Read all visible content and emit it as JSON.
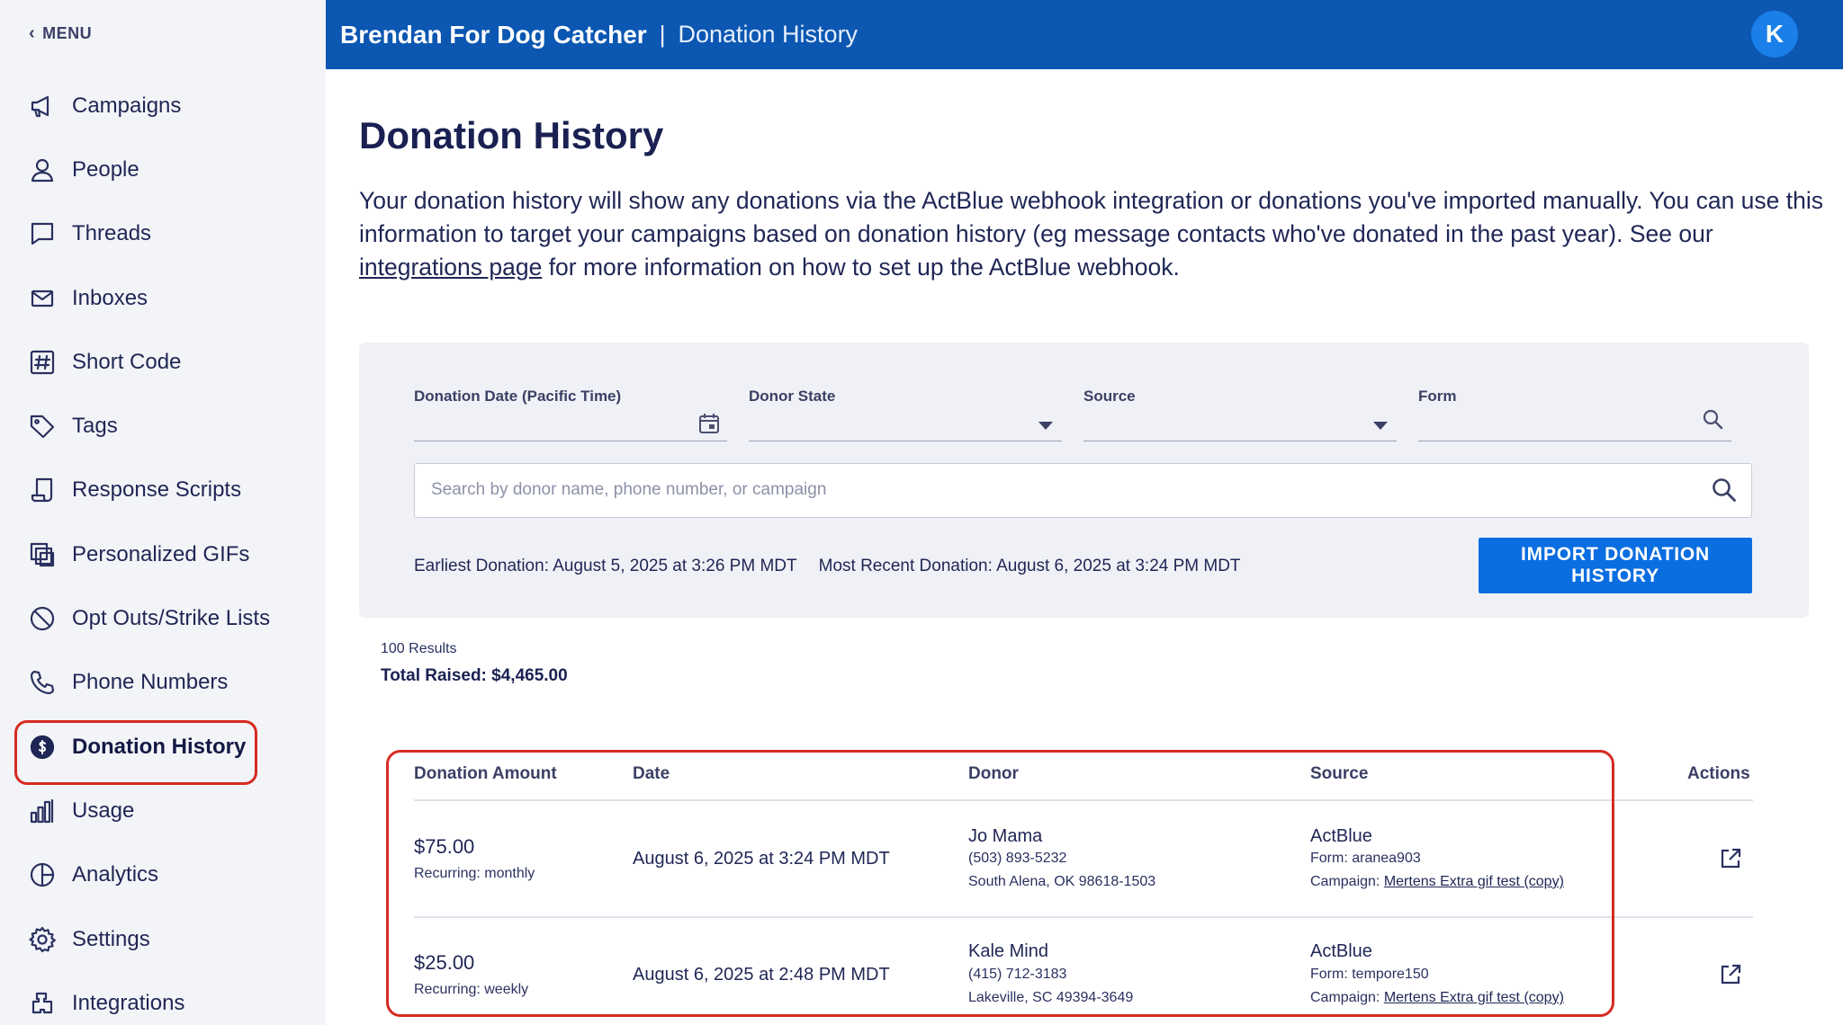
{
  "sidebar": {
    "menu_label": "MENU",
    "items": [
      {
        "label": "Campaigns",
        "icon": "megaphone-icon"
      },
      {
        "label": "People",
        "icon": "person-icon"
      },
      {
        "label": "Threads",
        "icon": "chat-bubble-icon"
      },
      {
        "label": "Inboxes",
        "icon": "envelope-icon"
      },
      {
        "label": "Short Code",
        "icon": "hash-icon"
      },
      {
        "label": "Tags",
        "icon": "tag-icon"
      },
      {
        "label": "Response Scripts",
        "icon": "script-icon"
      },
      {
        "label": "Personalized GIFs",
        "icon": "gif-stack-icon"
      },
      {
        "label": "Opt Outs/Strike Lists",
        "icon": "block-icon"
      },
      {
        "label": "Phone Numbers",
        "icon": "phone-icon"
      },
      {
        "label": "Donation History",
        "icon": "dollar-circle-icon",
        "active": true
      },
      {
        "label": "Usage",
        "icon": "bar-chart-icon"
      },
      {
        "label": "Analytics",
        "icon": "pie-chart-icon"
      },
      {
        "label": "Settings",
        "icon": "gear-icon"
      },
      {
        "label": "Integrations",
        "icon": "puzzle-icon"
      }
    ]
  },
  "header": {
    "brand": "Brendan For Dog Catcher",
    "separator": "|",
    "crumb": "Donation History",
    "avatar_initial": "K"
  },
  "page": {
    "title": "Donation History",
    "intro_before_link": "Your donation history will show any donations via the ActBlue webhook integration or donations you've imported manually. You can use this information to target your campaigns based on donation history (eg message contacts who've donated in the past year). See our ",
    "intro_link": "integrations page",
    "intro_after_link": " for more information on how to set up the ActBlue webhook."
  },
  "filters": {
    "donation_date_label": "Donation Date (Pacific Time)",
    "donor_state_label": "Donor State",
    "source_label": "Source",
    "form_label": "Form",
    "search_placeholder": "Search by donor name, phone number, or campaign",
    "earliest": "Earliest Donation: August 5, 2025 at 3:26 PM MDT",
    "most_recent": "Most Recent Donation: August 6, 2025 at 3:24 PM MDT",
    "import_button": "IMPORT DONATION HISTORY"
  },
  "results": {
    "count": "100 Results",
    "total": "Total Raised: $4,465.00"
  },
  "table": {
    "headers": {
      "amount": "Donation Amount",
      "date": "Date",
      "donor": "Donor",
      "source": "Source",
      "actions": "Actions"
    },
    "rows": [
      {
        "amount": "$75.00",
        "recurring": "Recurring: monthly",
        "date": "August 6, 2025 at 3:24 PM MDT",
        "donor_name": "Jo Mama",
        "donor_phone": "(503) 893-5232",
        "donor_address": "South Alena, OK 98618-1503",
        "source": "ActBlue",
        "form": "Form: aranea903",
        "campaign_prefix": "Campaign: ",
        "campaign": "Mertens Extra gif test (copy)"
      },
      {
        "amount": "$25.00",
        "recurring": "Recurring: weekly",
        "date": "August 6, 2025 at 2:48 PM MDT",
        "donor_name": "Kale Mind",
        "donor_phone": "(415) 712-3183",
        "donor_address": "Lakeville, SC 49394-3649",
        "source": "ActBlue",
        "form": "Form: tempore150",
        "campaign_prefix": "Campaign: ",
        "campaign": "Mertens Extra gif test (copy)"
      }
    ]
  }
}
